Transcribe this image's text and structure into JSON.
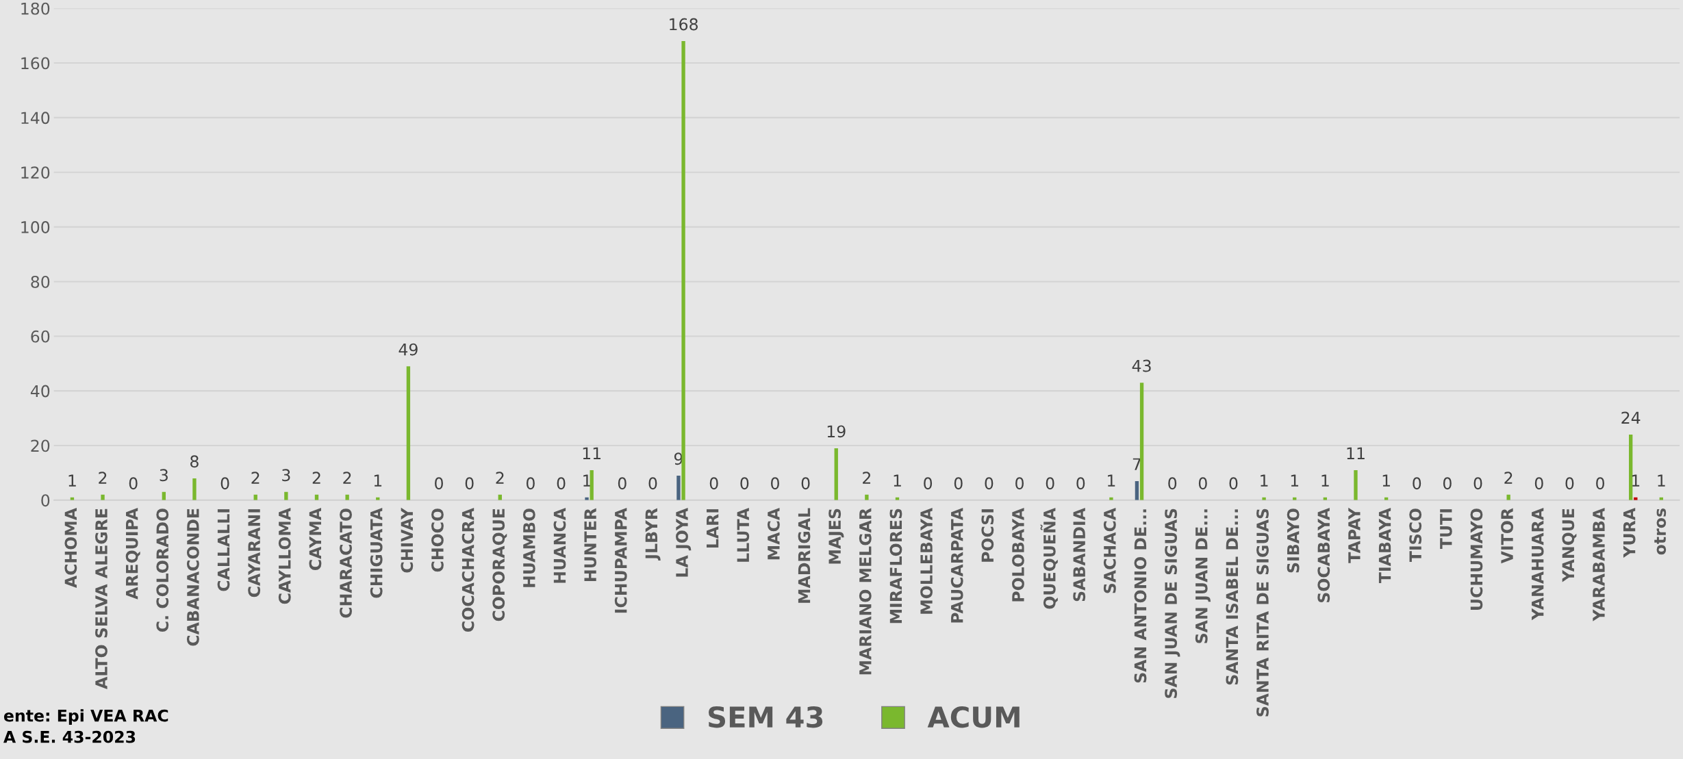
{
  "chart_data": {
    "type": "bar",
    "categories": [
      "ACHOMA",
      "ALTO SELVA ALEGRE",
      "AREQUIPA",
      "C. COLORADO",
      "CABANACONDE",
      "CALLALLI",
      "CAYARANI",
      "CAYLLOMA",
      "CAYMA",
      "CHARACATO",
      "CHIGUATA",
      "CHIVAY",
      "CHOCO",
      "COCACHACRA",
      "COPORAQUE",
      "HUAMBO",
      "HUANCA",
      "HUNTER",
      "ICHUPAMPA",
      "JLBYR",
      "LA JOYA",
      "LARI",
      "LLUTA",
      "MACA",
      "MADRIGAL",
      "MAJES",
      "MARIANO MELGAR",
      "MIRAFLORES",
      "MOLLEBAYA",
      "PAUCARPATA",
      "POCSI",
      "POLOBAYA",
      "QUEQUEÑA",
      "SABANDIA",
      "SACHACA",
      "SAN ANTONIO DE...",
      "SAN JUAN DE SIGUAS",
      "SAN JUAN DE...",
      "SANTA ISABEL DE...",
      "SANTA RITA DE SIGUAS",
      "SIBAYO",
      "SOCABAYA",
      "TAPAY",
      "TIABAYA",
      "TISCO",
      "TUTI",
      "UCHUMAYO",
      "VITOR",
      "YANAHUARA",
      "YANQUE",
      "YARABAMBA",
      "YURA",
      "otros"
    ],
    "series": [
      {
        "name": "SEM 43",
        "color": "#4a6480",
        "values": [
          0,
          0,
          0,
          0,
          0,
          0,
          0,
          0,
          0,
          0,
          0,
          0,
          0,
          0,
          0,
          0,
          0,
          1,
          0,
          0,
          9,
          0,
          0,
          0,
          0,
          0,
          0,
          0,
          0,
          0,
          0,
          0,
          0,
          0,
          0,
          7,
          0,
          0,
          0,
          0,
          0,
          0,
          0,
          0,
          0,
          0,
          0,
          0,
          0,
          0,
          0,
          0,
          0
        ],
        "value_labels": [
          null,
          null,
          null,
          null,
          null,
          null,
          null,
          null,
          null,
          null,
          null,
          null,
          null,
          null,
          null,
          null,
          null,
          "1",
          null,
          null,
          "9",
          null,
          null,
          null,
          null,
          null,
          null,
          null,
          null,
          null,
          null,
          null,
          null,
          null,
          null,
          "7",
          null,
          null,
          null,
          null,
          null,
          null,
          null,
          null,
          null,
          null,
          null,
          null,
          null,
          null,
          null,
          null,
          null
        ]
      },
      {
        "name": "ACUM",
        "color": "#7ab82e",
        "values": [
          1,
          2,
          0,
          3,
          8,
          0,
          2,
          3,
          2,
          2,
          1,
          49,
          0,
          0,
          2,
          0,
          0,
          11,
          0,
          0,
          168,
          0,
          0,
          0,
          0,
          19,
          2,
          1,
          0,
          0,
          0,
          0,
          0,
          0,
          1,
          43,
          0,
          0,
          0,
          1,
          1,
          1,
          11,
          1,
          0,
          0,
          0,
          2,
          0,
          0,
          0,
          24,
          1
        ],
        "value_labels": [
          "1",
          "2",
          "0",
          "3",
          "8",
          "0",
          "2",
          "3",
          "2",
          "2",
          "1",
          "49",
          "0",
          "0",
          "2",
          "0",
          "0",
          "11",
          "0",
          "0",
          "168",
          "0",
          "0",
          "0",
          "0",
          "19",
          "2",
          "1",
          "0",
          "0",
          "0",
          "0",
          "0",
          "0",
          "1",
          "43",
          "0",
          "0",
          "0",
          "1",
          "1",
          "1",
          "11",
          "1",
          "0",
          "0",
          "0",
          "2",
          "0",
          "0",
          "0",
          "24",
          "1"
        ]
      },
      {
        "color": "#c00000",
        "values": [
          null,
          null,
          null,
          null,
          null,
          null,
          null,
          null,
          null,
          null,
          null,
          null,
          null,
          null,
          null,
          null,
          null,
          null,
          null,
          null,
          null,
          null,
          null,
          null,
          null,
          null,
          null,
          null,
          null,
          null,
          null,
          null,
          null,
          null,
          null,
          null,
          null,
          null,
          null,
          null,
          null,
          null,
          null,
          null,
          null,
          null,
          null,
          null,
          null,
          null,
          null,
          1,
          null
        ],
        "value_labels": [
          null,
          null,
          null,
          null,
          null,
          null,
          null,
          null,
          null,
          null,
          null,
          null,
          null,
          null,
          null,
          null,
          null,
          null,
          null,
          null,
          null,
          null,
          null,
          null,
          null,
          null,
          null,
          null,
          null,
          null,
          null,
          null,
          null,
          null,
          null,
          null,
          null,
          null,
          null,
          null,
          null,
          null,
          null,
          null,
          null,
          null,
          null,
          null,
          null,
          null,
          null,
          "1",
          null
        ]
      }
    ],
    "ylim": [
      0,
      180
    ],
    "yticks": [
      0,
      20,
      40,
      60,
      80,
      100,
      120,
      140,
      160,
      180
    ],
    "grid": "y",
    "legend": "bottom",
    "annotations": [
      "ente: Epi VEA RAC",
      "A S.E. 43-2023"
    ]
  }
}
